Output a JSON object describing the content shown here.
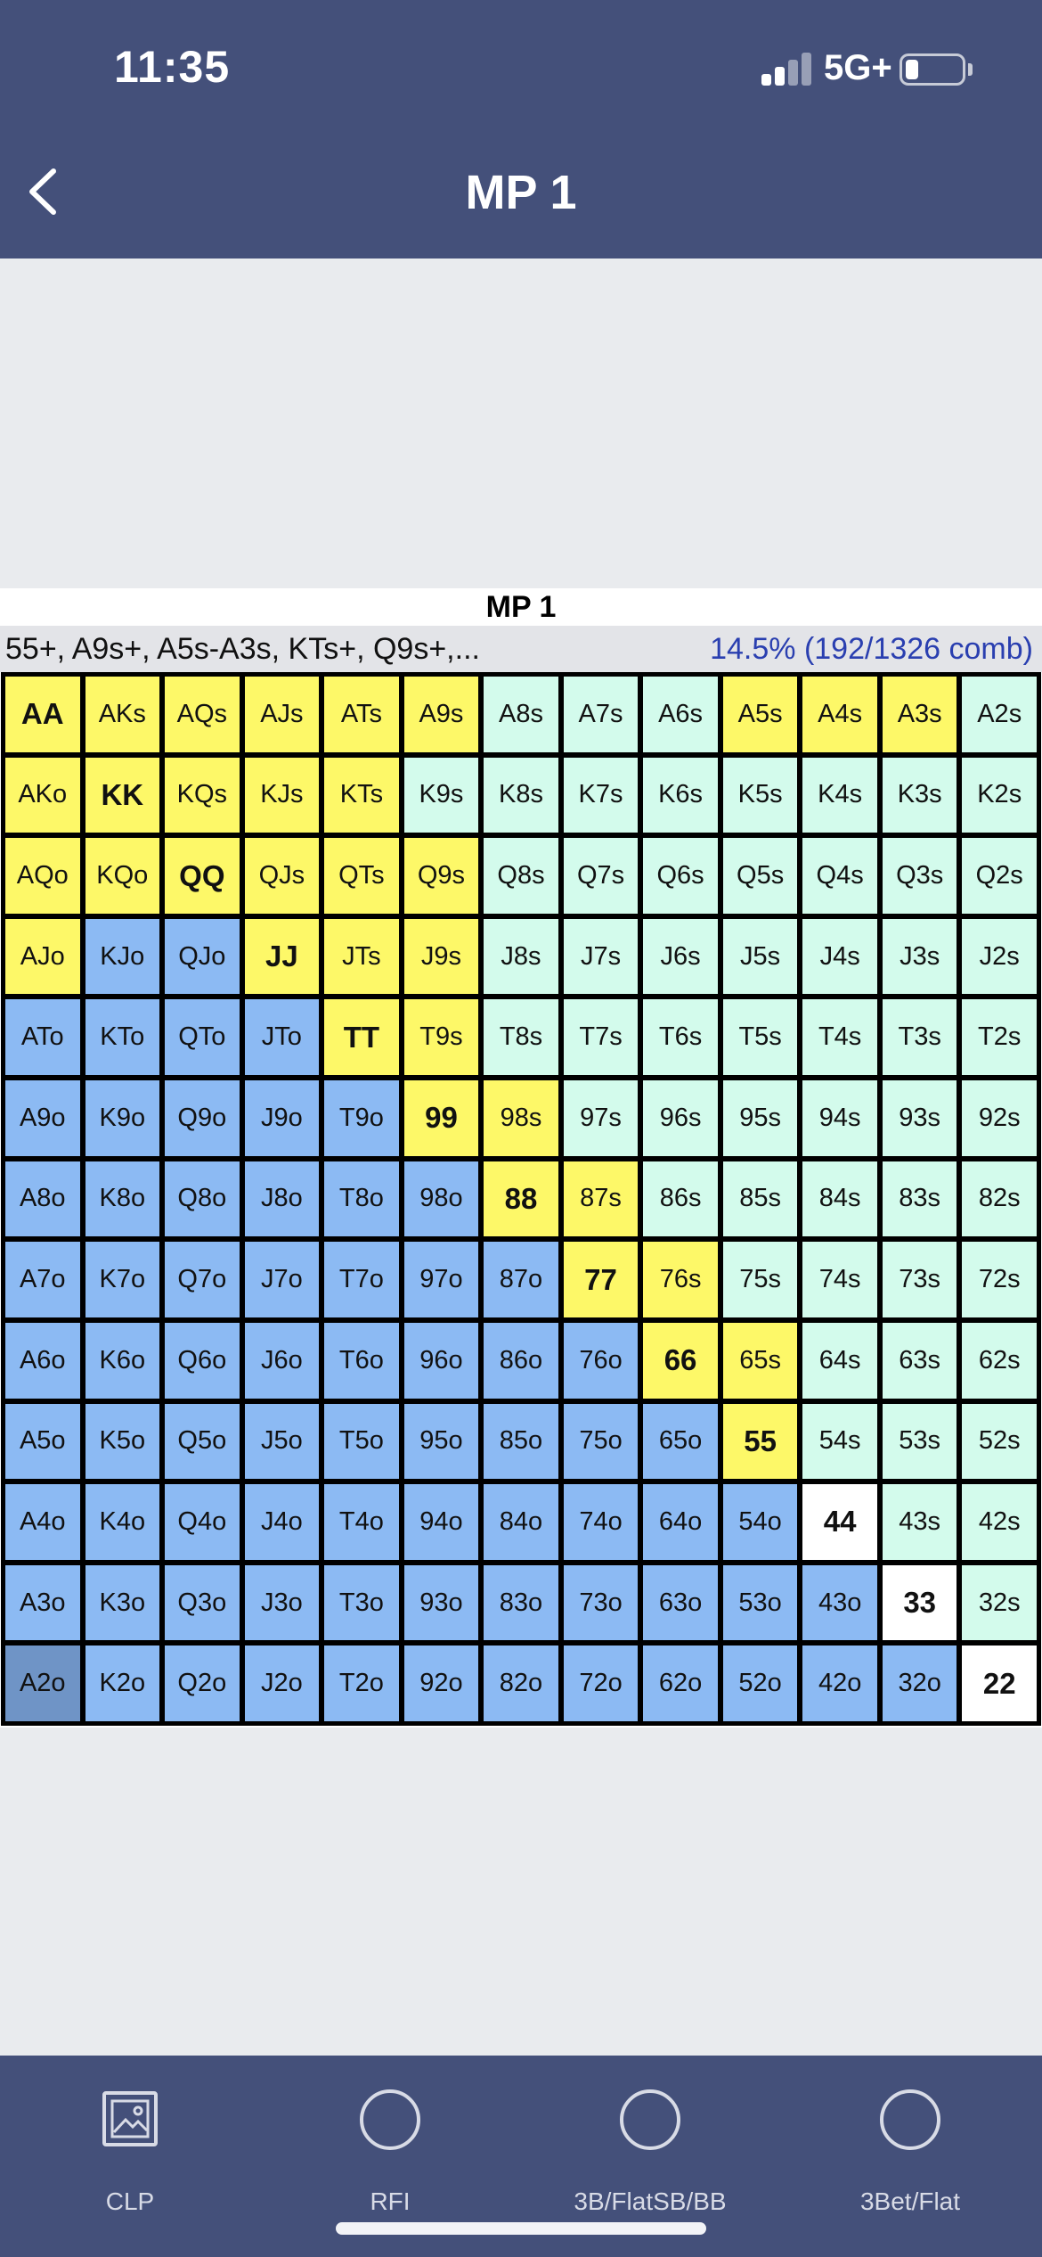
{
  "status_bar": {
    "time": "11:35",
    "network": "5G+"
  },
  "header": {
    "title": "MP 1",
    "back_icon": "chevron-left-icon"
  },
  "chart": {
    "title": "MP 1",
    "range_text": "55+, A9s+, A5s-A3s, KTs+, Q9s+,...",
    "percent_text": "14.5%  (192/1326 comb)",
    "colors": {
      "raise": "#fdf868",
      "suited": "#d3fbec",
      "offsuit": "#8cbaf3",
      "blank": "#ffffff",
      "selected": "#6f94c6"
    },
    "rows": [
      [
        "AA",
        "AKs",
        "AQs",
        "AJs",
        "ATs",
        "A9s",
        "A8s",
        "A7s",
        "A6s",
        "A5s",
        "A4s",
        "A3s",
        "A2s"
      ],
      [
        "AKo",
        "KK",
        "KQs",
        "KJs",
        "KTs",
        "K9s",
        "K8s",
        "K7s",
        "K6s",
        "K5s",
        "K4s",
        "K3s",
        "K2s"
      ],
      [
        "AQo",
        "KQo",
        "QQ",
        "QJs",
        "QTs",
        "Q9s",
        "Q8s",
        "Q7s",
        "Q6s",
        "Q5s",
        "Q4s",
        "Q3s",
        "Q2s"
      ],
      [
        "AJo",
        "KJo",
        "QJo",
        "JJ",
        "JTs",
        "J9s",
        "J8s",
        "J7s",
        "J6s",
        "J5s",
        "J4s",
        "J3s",
        "J2s"
      ],
      [
        "ATo",
        "KTo",
        "QTo",
        "JTo",
        "TT",
        "T9s",
        "T8s",
        "T7s",
        "T6s",
        "T5s",
        "T4s",
        "T3s",
        "T2s"
      ],
      [
        "A9o",
        "K9o",
        "Q9o",
        "J9o",
        "T9o",
        "99",
        "98s",
        "97s",
        "96s",
        "95s",
        "94s",
        "93s",
        "92s"
      ],
      [
        "A8o",
        "K8o",
        "Q8o",
        "J8o",
        "T8o",
        "98o",
        "88",
        "87s",
        "86s",
        "85s",
        "84s",
        "83s",
        "82s"
      ],
      [
        "A7o",
        "K7o",
        "Q7o",
        "J7o",
        "T7o",
        "97o",
        "87o",
        "77",
        "76s",
        "75s",
        "74s",
        "73s",
        "72s"
      ],
      [
        "A6o",
        "K6o",
        "Q6o",
        "J6o",
        "T6o",
        "96o",
        "86o",
        "76o",
        "66",
        "65s",
        "64s",
        "63s",
        "62s"
      ],
      [
        "A5o",
        "K5o",
        "Q5o",
        "J5o",
        "T5o",
        "95o",
        "85o",
        "75o",
        "65o",
        "55",
        "54s",
        "53s",
        "52s"
      ],
      [
        "A4o",
        "K4o",
        "Q4o",
        "J4o",
        "T4o",
        "94o",
        "84o",
        "74o",
        "64o",
        "54o",
        "44",
        "43s",
        "42s"
      ],
      [
        "A3o",
        "K3o",
        "Q3o",
        "J3o",
        "T3o",
        "93o",
        "83o",
        "73o",
        "63o",
        "53o",
        "43o",
        "33",
        "32s"
      ],
      [
        "A2o",
        "K2o",
        "Q2o",
        "J2o",
        "T2o",
        "92o",
        "82o",
        "72o",
        "62o",
        "52o",
        "42o",
        "32o",
        "22"
      ]
    ],
    "raise_hands": [
      "AA",
      "AKs",
      "AQs",
      "AJs",
      "ATs",
      "A9s",
      "A5s",
      "A4s",
      "A3s",
      "AKo",
      "KK",
      "KQs",
      "KJs",
      "KTs",
      "AQo",
      "KQo",
      "QQ",
      "QJs",
      "QTs",
      "Q9s",
      "AJo",
      "JJ",
      "JTs",
      "J9s",
      "TT",
      "T9s",
      "99",
      "98s",
      "88",
      "87s",
      "77",
      "76s",
      "66",
      "65s",
      "55"
    ],
    "selected_hand": "A2o"
  },
  "tabs": [
    {
      "label": "CLP",
      "icon": "image-icon"
    },
    {
      "label": "RFI",
      "icon": "radio-circle-icon"
    },
    {
      "label": "3B/FlatSB/BB",
      "icon": "radio-circle-icon"
    },
    {
      "label": "3Bet/Flat",
      "icon": "radio-circle-icon"
    }
  ]
}
